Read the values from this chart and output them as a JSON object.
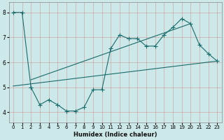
{
  "title": "",
  "xlabel": "Humidex (Indice chaleur)",
  "xlim": [
    -0.5,
    23.5
  ],
  "ylim": [
    3.6,
    8.4
  ],
  "xticks": [
    0,
    1,
    2,
    3,
    4,
    5,
    6,
    7,
    8,
    9,
    10,
    11,
    12,
    13,
    14,
    15,
    16,
    17,
    18,
    19,
    20,
    21,
    22,
    23
  ],
  "yticks": [
    4,
    5,
    6,
    7,
    8
  ],
  "bg_color": "#cce8e8",
  "grid_color": "#b0d8d8",
  "line_color": "#1a6b6b",
  "line1_x": [
    0,
    1,
    2
  ],
  "line1_y": [
    8.0,
    8.0,
    5.0
  ],
  "line2_x": [
    2,
    3,
    4,
    5,
    6,
    7,
    8,
    9,
    10,
    11,
    12,
    13,
    14,
    15,
    16,
    17,
    18,
    19,
    20,
    21,
    22,
    23
  ],
  "line2_y": [
    5.0,
    4.3,
    4.5,
    4.3,
    4.05,
    4.05,
    4.2,
    4.9,
    4.9,
    6.55,
    7.1,
    6.95,
    6.95,
    6.65,
    6.65,
    7.1,
    7.4,
    7.75,
    7.55,
    6.7,
    6.35,
    6.05
  ],
  "line3_x": [
    0,
    23
  ],
  "line3_y": [
    5.05,
    6.05
  ],
  "line4_x": [
    2,
    20
  ],
  "line4_y": [
    5.3,
    7.55
  ]
}
